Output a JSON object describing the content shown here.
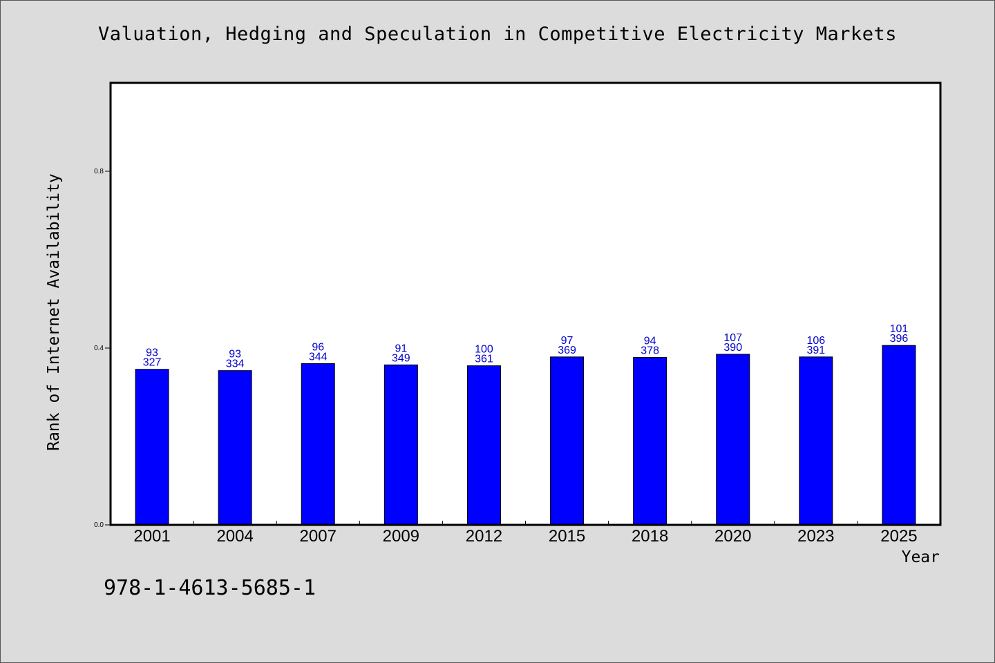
{
  "chart_data": {
    "type": "bar",
    "title": "Valuation, Hedging and Speculation in Competitive Electricity Markets",
    "xlabel": "Year",
    "ylabel": "Rank of Internet Availability",
    "ylim": [
      0,
      1.0
    ],
    "yticks": [
      "0.0",
      "0.4",
      "0.8"
    ],
    "ytick_values": [
      0.0,
      0.4,
      0.8
    ],
    "categories": [
      "2001",
      "2004",
      "2007",
      "2009",
      "2012",
      "2015",
      "2018",
      "2020",
      "2023",
      "2025"
    ],
    "values": [
      0.352,
      0.349,
      0.365,
      0.362,
      0.36,
      0.38,
      0.379,
      0.386,
      0.38,
      0.406
    ],
    "labels_top": [
      "93",
      "93",
      "96",
      "91",
      "100",
      "97",
      "94",
      "107",
      "106",
      "101"
    ],
    "labels_bottom": [
      "327",
      "334",
      "344",
      "349",
      "361",
      "369",
      "378",
      "390",
      "391",
      "396"
    ],
    "bar_color": "#0000ff",
    "label_color": "#0000cc",
    "grid": false,
    "legend": "none"
  },
  "footer": {
    "isbn": "978-1-4613-5685-1"
  }
}
